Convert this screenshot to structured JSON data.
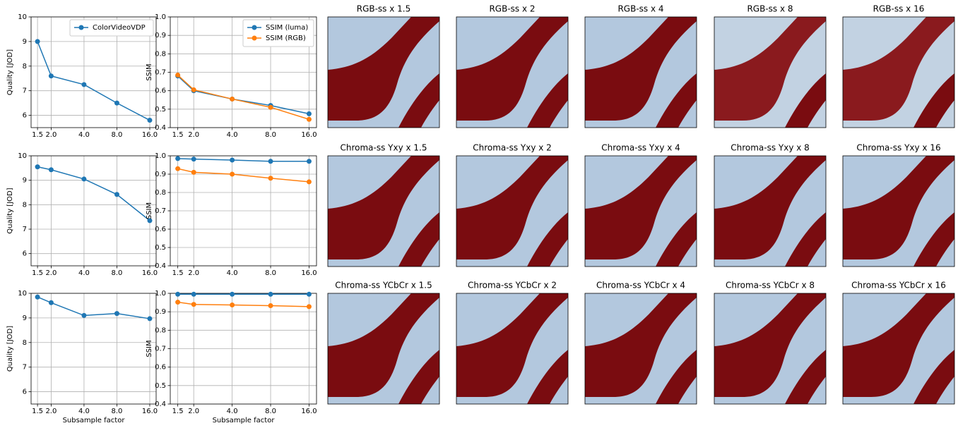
{
  "chart_data": [
    {
      "type": "line",
      "ylabel": "Quality [JOD]",
      "xscale": "log",
      "grid": true,
      "legend": "upper right",
      "x": [
        1.5,
        2,
        4,
        8,
        16
      ],
      "xlim": [
        1.31,
        18.3
      ],
      "xticks": [
        {
          "value": 1.5,
          "label": "1.5"
        },
        {
          "value": 2,
          "label": "2.0"
        },
        {
          "value": 4,
          "label": "4.0"
        },
        {
          "value": 8,
          "label": "8.0"
        },
        {
          "value": 16,
          "label": "16.0"
        }
      ],
      "ylim": [
        5.5,
        10
      ],
      "yticks": [
        6,
        7,
        8,
        9,
        10
      ],
      "series": [
        {
          "name": "ColorVideoVDP",
          "color": "#1f77b4",
          "values": [
            9.0,
            7.6,
            7.25,
            6.5,
            5.8
          ]
        }
      ]
    },
    {
      "type": "line",
      "ylabel": "SSIM",
      "xscale": "log",
      "grid": true,
      "legend": "upper right",
      "x": [
        1.5,
        2,
        4,
        8,
        16
      ],
      "xlim": [
        1.31,
        18.3
      ],
      "xticks": [
        {
          "value": 1.5,
          "label": "1.5"
        },
        {
          "value": 2,
          "label": "2.0"
        },
        {
          "value": 4,
          "label": "4.0"
        },
        {
          "value": 8,
          "label": "8.0"
        },
        {
          "value": 16,
          "label": "16.0"
        }
      ],
      "ylim": [
        0.4,
        1.0
      ],
      "yticks": [
        0.4,
        0.5,
        0.6,
        0.7,
        0.8,
        0.9,
        {
          "value": 1,
          "label": "1.0"
        }
      ],
      "series": [
        {
          "name": "SSIM (luma)",
          "color": "#1f77b4",
          "values": [
            0.68,
            0.6,
            0.555,
            0.52,
            0.475
          ]
        },
        {
          "name": "SSIM (RGB)",
          "color": "#ff7f0e",
          "values": [
            0.685,
            0.605,
            0.555,
            0.51,
            0.445
          ]
        }
      ]
    },
    {
      "type": "line",
      "ylabel": "Quality [JOD]",
      "xscale": "log",
      "grid": true,
      "x": [
        1.5,
        2,
        4,
        8,
        16
      ],
      "xlim": [
        1.31,
        18.3
      ],
      "xticks": [
        {
          "value": 1.5,
          "label": "1.5"
        },
        {
          "value": 2,
          "label": "2.0"
        },
        {
          "value": 4,
          "label": "4.0"
        },
        {
          "value": 8,
          "label": "8.0"
        },
        {
          "value": 16,
          "label": "16.0"
        }
      ],
      "ylim": [
        5.5,
        10
      ],
      "yticks": [
        6,
        7,
        8,
        9,
        10
      ],
      "series": [
        {
          "color": "#1f77b4",
          "values": [
            9.55,
            9.43,
            9.05,
            8.42,
            7.35
          ]
        }
      ]
    },
    {
      "type": "line",
      "ylabel": "SSIM",
      "xscale": "log",
      "grid": true,
      "x": [
        1.5,
        2,
        4,
        8,
        16
      ],
      "xlim": [
        1.31,
        18.3
      ],
      "xticks": [
        {
          "value": 1.5,
          "label": "1.5"
        },
        {
          "value": 2,
          "label": "2.0"
        },
        {
          "value": 4,
          "label": "4.0"
        },
        {
          "value": 8,
          "label": "8.0"
        },
        {
          "value": 16,
          "label": "16.0"
        }
      ],
      "ylim": [
        0.4,
        1.0
      ],
      "yticks": [
        0.4,
        0.5,
        0.6,
        0.7,
        0.8,
        0.9,
        {
          "value": 1,
          "label": "1.0"
        }
      ],
      "series": [
        {
          "color": "#1f77b4",
          "values": [
            0.985,
            0.982,
            0.977,
            0.97,
            0.97
          ]
        },
        {
          "color": "#ff7f0e",
          "values": [
            0.93,
            0.91,
            0.9,
            0.878,
            0.858
          ]
        }
      ]
    },
    {
      "type": "line",
      "ylabel": "Quality [JOD]",
      "xlabel": "Subsample factor",
      "xscale": "log",
      "grid": true,
      "x": [
        1.5,
        2,
        4,
        8,
        16
      ],
      "xlim": [
        1.31,
        18.3
      ],
      "xticks": [
        {
          "value": 1.5,
          "label": "1.5"
        },
        {
          "value": 2,
          "label": "2.0"
        },
        {
          "value": 4,
          "label": "4.0"
        },
        {
          "value": 8,
          "label": "8.0"
        },
        {
          "value": 16,
          "label": "16.0"
        }
      ],
      "ylim": [
        5.5,
        10
      ],
      "yticks": [
        6,
        7,
        8,
        9,
        10
      ],
      "series": [
        {
          "color": "#1f77b4",
          "values": [
            9.85,
            9.62,
            9.1,
            9.18,
            8.97
          ]
        }
      ]
    },
    {
      "type": "line",
      "ylabel": "SSIM",
      "xlabel": "Subsample factor",
      "xscale": "log",
      "grid": true,
      "x": [
        1.5,
        2,
        4,
        8,
        16
      ],
      "xlim": [
        1.31,
        18.3
      ],
      "xticks": [
        {
          "value": 1.5,
          "label": "1.5"
        },
        {
          "value": 2,
          "label": "2.0"
        },
        {
          "value": 4,
          "label": "4.0"
        },
        {
          "value": 8,
          "label": "8.0"
        },
        {
          "value": 16,
          "label": "16.0"
        }
      ],
      "ylim": [
        0.4,
        1.0
      ],
      "yticks": [
        0.4,
        0.5,
        0.6,
        0.7,
        0.8,
        0.9,
        {
          "value": 1,
          "label": "1.0"
        }
      ],
      "series": [
        {
          "color": "#1f77b4",
          "values": [
            0.995,
            0.995,
            0.995,
            0.995,
            0.995
          ]
        },
        {
          "color": "#ff7f0e",
          "values": [
            0.952,
            0.94,
            0.937,
            0.933,
            0.928
          ]
        }
      ]
    }
  ],
  "panels": [
    {
      "title": "RGB-ss x 1.5"
    },
    {
      "title": "RGB-ss x 2"
    },
    {
      "title": "RGB-ss x 4"
    },
    {
      "title": "RGB-ss x 8"
    },
    {
      "title": "RGB-ss x 16"
    },
    {
      "title": "Chroma-ss Yxy x 1.5"
    },
    {
      "title": "Chroma-ss Yxy x 2"
    },
    {
      "title": "Chroma-ss Yxy x 4"
    },
    {
      "title": "Chroma-ss Yxy x 8"
    },
    {
      "title": "Chroma-ss Yxy x 16"
    },
    {
      "title": "Chroma-ss YCbCr x 1.5"
    },
    {
      "title": "Chroma-ss YCbCr x 2"
    },
    {
      "title": "Chroma-ss YCbCr x 4"
    },
    {
      "title": "Chroma-ss YCbCr x 8"
    },
    {
      "title": "Chroma-ss YCbCr x 16"
    }
  ]
}
